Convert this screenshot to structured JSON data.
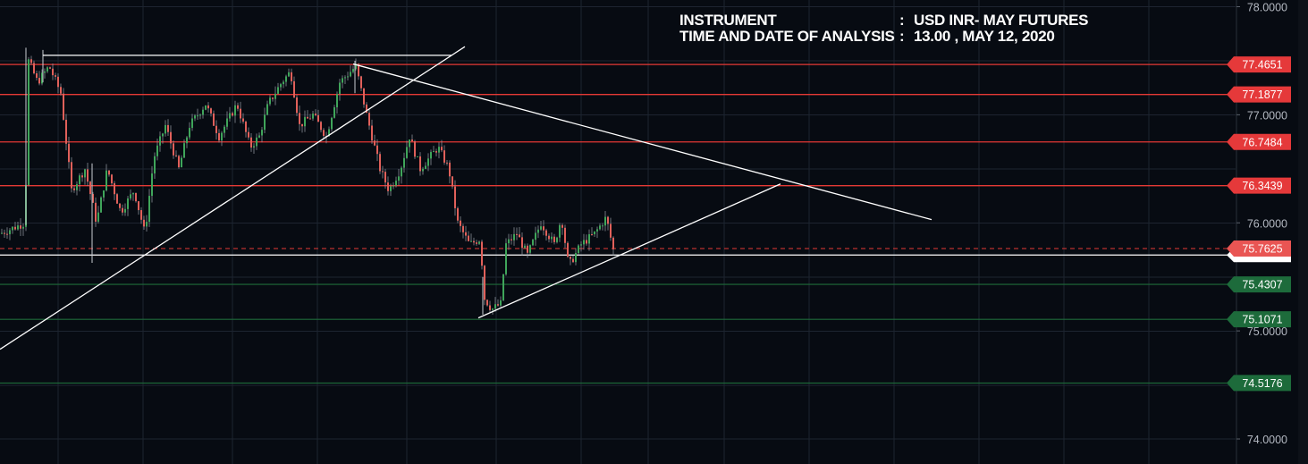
{
  "header": {
    "instrument_label": "INSTRUMENT",
    "instrument_sep": ":",
    "instrument_value": "USD INR- MAY FUTURES",
    "date_label": "TIME AND DATE OF ANALYSIS",
    "date_sep": ":",
    "date_value": "13.00 , MAY 12, 2020"
  },
  "colors": {
    "background": "#070b12",
    "grid": "#1d2430",
    "resistance": "#e53935",
    "support": "#1e6b3a",
    "current_price": "#e53935",
    "trendline": "#ffffff",
    "candle_up": "#3fa55a",
    "candle_down": "#e0605a",
    "axis_text": "#b4b9c2"
  },
  "chart_data": {
    "type": "candlestick",
    "ylim": [
      73.855,
      78.025
    ],
    "y_ticks": [
      "78.0000",
      "77.0000",
      "76.0000",
      "75.0000",
      "74.0000"
    ],
    "y_tick_values": [
      78.0,
      77.0,
      76.0,
      75.0,
      74.0
    ],
    "resistance_levels": [
      {
        "value": 77.4651,
        "label": "77.4651"
      },
      {
        "value": 77.1877,
        "label": "77.1877"
      },
      {
        "value": 76.7484,
        "label": "76.7484"
      },
      {
        "value": 76.3439,
        "label": "76.3439"
      }
    ],
    "support_levels": [
      {
        "value": 75.4307,
        "label": "75.4307"
      },
      {
        "value": 75.1071,
        "label": "75.1071"
      },
      {
        "value": 74.5176,
        "label": "74.5176"
      }
    ],
    "current_price": {
      "value": 75.7625,
      "label": "75.7625"
    },
    "reference_line": {
      "value": 75.7019
    },
    "trendlines": [
      {
        "from": [
          0,
          74.83
        ],
        "to": [
          520,
          77.63
        ]
      },
      {
        "from": [
          48,
          77.55
        ],
        "to": [
          505,
          77.55
        ]
      },
      {
        "from": [
          395,
          77.47
        ],
        "to": [
          1042,
          76.03
        ]
      },
      {
        "from": [
          535,
          75.12
        ],
        "to": [
          873,
          76.36
        ]
      }
    ],
    "price_path": [
      [
        0,
        75.9
      ],
      [
        28,
        76.0
      ],
      [
        32,
        77.5
      ],
      [
        42,
        77.3
      ],
      [
        55,
        77.45
      ],
      [
        68,
        77.2
      ],
      [
        80,
        76.3
      ],
      [
        95,
        76.5
      ],
      [
        108,
        76.0
      ],
      [
        120,
        76.5
      ],
      [
        135,
        76.1
      ],
      [
        150,
        76.3
      ],
      [
        162,
        75.9
      ],
      [
        172,
        76.6
      ],
      [
        185,
        76.9
      ],
      [
        200,
        76.5
      ],
      [
        212,
        76.9
      ],
      [
        230,
        77.1
      ],
      [
        245,
        76.8
      ],
      [
        265,
        77.1
      ],
      [
        280,
        76.7
      ],
      [
        290,
        76.8
      ],
      [
        300,
        77.1
      ],
      [
        315,
        77.3
      ],
      [
        325,
        77.4
      ],
      [
        335,
        76.9
      ],
      [
        350,
        77.0
      ],
      [
        365,
        76.8
      ],
      [
        380,
        77.3
      ],
      [
        398,
        77.45
      ],
      [
        410,
        77.0
      ],
      [
        425,
        76.5
      ],
      [
        435,
        76.3
      ],
      [
        448,
        76.5
      ],
      [
        458,
        76.8
      ],
      [
        470,
        76.5
      ],
      [
        490,
        76.7
      ],
      [
        502,
        76.5
      ],
      [
        512,
        76.0
      ],
      [
        525,
        75.8
      ],
      [
        537,
        75.85
      ],
      [
        542,
        75.3
      ],
      [
        550,
        75.2
      ],
      [
        560,
        75.25
      ],
      [
        566,
        75.8
      ],
      [
        578,
        75.9
      ],
      [
        590,
        75.7
      ],
      [
        605,
        76.0
      ],
      [
        620,
        75.8
      ],
      [
        628,
        76.05
      ],
      [
        636,
        75.6
      ],
      [
        650,
        75.8
      ],
      [
        665,
        75.9
      ],
      [
        678,
        76.05
      ],
      [
        686,
        75.75
      ]
    ]
  }
}
